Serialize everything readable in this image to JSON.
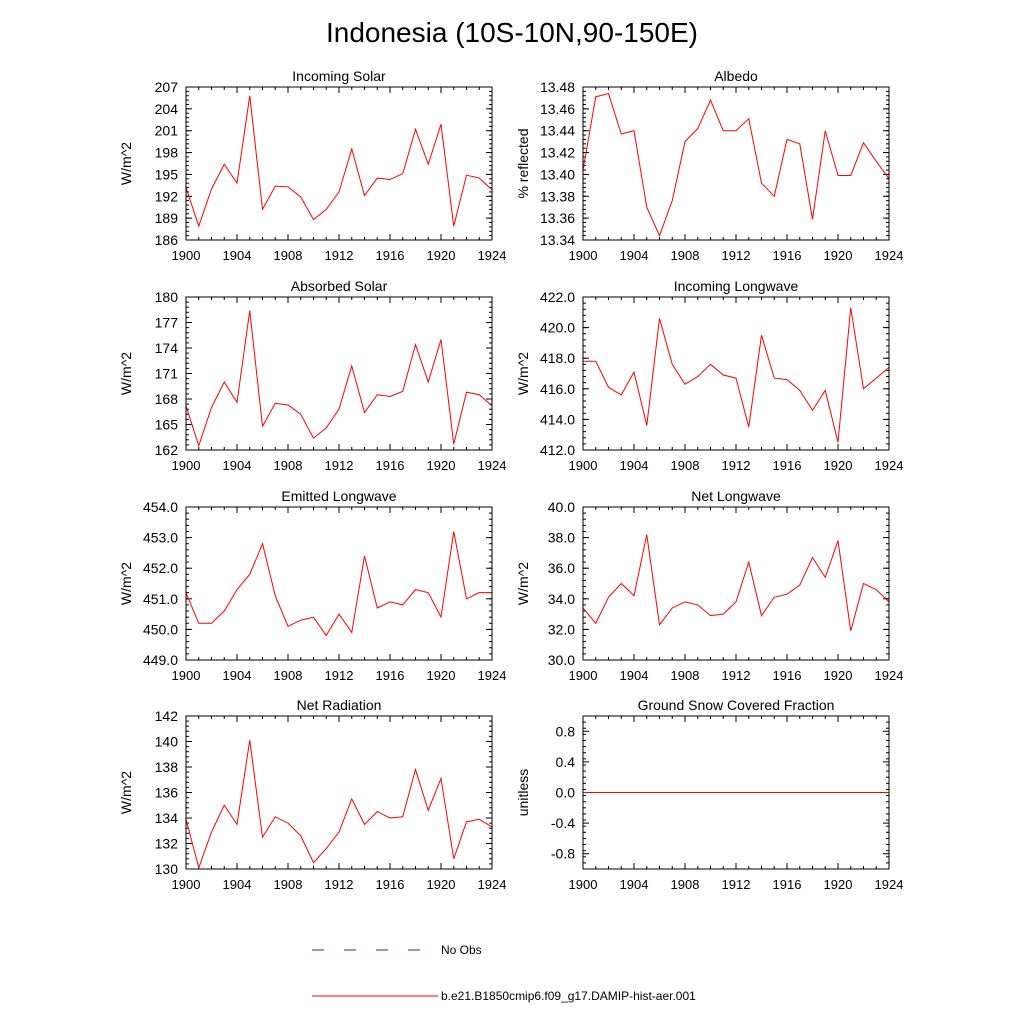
{
  "title": "Indonesia (10S-10N,90-150E)",
  "colors": {
    "model": "#ff0000",
    "obs": "#2b2bbf",
    "axis": "#000000"
  },
  "legend": [
    {
      "label": "No Obs",
      "style": "dashed",
      "color": "#2b2bbf"
    },
    {
      "label": "b.e21.B1850cmip6.f09_g17.DAMIP-hist-aer.001",
      "style": "solid",
      "color": "#ff0000"
    }
  ],
  "chart_data": [
    {
      "type": "line",
      "title": "Incoming Solar",
      "ylabel": "W/m^2",
      "xlim": [
        1900,
        1924
      ],
      "ylim": [
        186,
        207
      ],
      "xticks": [
        "1900",
        "1904",
        "1908",
        "1912",
        "1916",
        "1920",
        "1924"
      ],
      "yticks": [
        "186",
        "189",
        "192",
        "195",
        "198",
        "201",
        "204",
        "207"
      ],
      "x": [
        1900,
        1901,
        1902,
        1903,
        1904,
        1905,
        1906,
        1907,
        1908,
        1909,
        1910,
        1911,
        1912,
        1913,
        1914,
        1915,
        1916,
        1917,
        1918,
        1919,
        1920,
        1921,
        1922,
        1923,
        1924
      ],
      "series": [
        {
          "values": [
            193.2,
            187.9,
            193.0,
            196.4,
            193.8,
            205.8,
            190.2,
            193.4,
            193.3,
            191.9,
            188.8,
            190.2,
            192.6,
            198.5,
            192.1,
            194.5,
            194.3,
            195.1,
            201.2,
            196.4,
            201.9,
            187.9,
            194.9,
            194.5,
            192.9
          ]
        }
      ]
    },
    {
      "type": "line",
      "title": "Albedo",
      "ylabel": "% reflected",
      "xlim": [
        1900,
        1924
      ],
      "ylim": [
        13.34,
        13.48
      ],
      "xticks": [
        "1900",
        "1904",
        "1908",
        "1912",
        "1916",
        "1920",
        "1924"
      ],
      "yticks": [
        "13.34",
        "13.36",
        "13.38",
        "13.40",
        "13.42",
        "13.44",
        "13.46",
        "13.48"
      ],
      "x": [
        1900,
        1901,
        1902,
        1903,
        1904,
        1905,
        1906,
        1907,
        1908,
        1909,
        1910,
        1911,
        1912,
        1913,
        1914,
        1915,
        1916,
        1917,
        1918,
        1919,
        1920,
        1921,
        1922,
        1923,
        1924
      ],
      "series": [
        {
          "values": [
            13.404,
            13.471,
            13.474,
            13.437,
            13.44,
            13.37,
            13.344,
            13.376,
            13.43,
            13.442,
            13.468,
            13.44,
            13.44,
            13.451,
            13.392,
            13.38,
            13.432,
            13.428,
            13.359,
            13.44,
            13.399,
            13.399,
            13.429,
            13.412,
            13.396
          ]
        }
      ]
    },
    {
      "type": "line",
      "title": "Absorbed Solar",
      "ylabel": "W/m^2",
      "xlim": [
        1900,
        1924
      ],
      "ylim": [
        162,
        180
      ],
      "xticks": [
        "1900",
        "1904",
        "1908",
        "1912",
        "1916",
        "1920",
        "1924"
      ],
      "yticks": [
        "162",
        "165",
        "168",
        "171",
        "174",
        "177",
        "180"
      ],
      "x": [
        1900,
        1901,
        1902,
        1903,
        1904,
        1905,
        1906,
        1907,
        1908,
        1909,
        1910,
        1911,
        1912,
        1913,
        1914,
        1915,
        1916,
        1917,
        1918,
        1919,
        1920,
        1921,
        1922,
        1923,
        1924
      ],
      "series": [
        {
          "values": [
            167.2,
            162.5,
            167.0,
            170.0,
            167.6,
            178.4,
            164.8,
            167.5,
            167.3,
            166.2,
            163.4,
            164.6,
            166.8,
            171.9,
            166.4,
            168.5,
            168.3,
            168.9,
            174.4,
            170.0,
            175.0,
            162.7,
            168.8,
            168.5,
            167.2
          ]
        }
      ]
    },
    {
      "type": "line",
      "title": "Incoming Longwave",
      "ylabel": "W/m^2",
      "xlim": [
        1900,
        1924
      ],
      "ylim": [
        412.0,
        422.0
      ],
      "xticks": [
        "1900",
        "1904",
        "1908",
        "1912",
        "1916",
        "1920",
        "1924"
      ],
      "yticks": [
        "412.0",
        "414.0",
        "416.0",
        "418.0",
        "420.0",
        "422.0"
      ],
      "x": [
        1900,
        1901,
        1902,
        1903,
        1904,
        1905,
        1906,
        1907,
        1908,
        1909,
        1910,
        1911,
        1912,
        1913,
        1914,
        1915,
        1916,
        1917,
        1918,
        1919,
        1920,
        1921,
        1922,
        1923,
        1924
      ],
      "series": [
        {
          "values": [
            417.8,
            417.8,
            416.1,
            415.6,
            417.1,
            413.6,
            420.6,
            417.6,
            416.3,
            416.8,
            417.6,
            416.9,
            416.7,
            413.5,
            419.5,
            416.7,
            416.6,
            415.9,
            414.6,
            415.9,
            412.5,
            421.3,
            416.0,
            416.7,
            417.4
          ]
        }
      ]
    },
    {
      "type": "line",
      "title": "Emitted Longwave",
      "ylabel": "W/m^2",
      "xlim": [
        1900,
        1924
      ],
      "ylim": [
        449.0,
        454.0
      ],
      "xticks": [
        "1900",
        "1904",
        "1908",
        "1912",
        "1916",
        "1920",
        "1924"
      ],
      "yticks": [
        "449.0",
        "450.0",
        "451.0",
        "452.0",
        "453.0",
        "454.0"
      ],
      "x": [
        1900,
        1901,
        1902,
        1903,
        1904,
        1905,
        1906,
        1907,
        1908,
        1909,
        1910,
        1911,
        1912,
        1913,
        1914,
        1915,
        1916,
        1917,
        1918,
        1919,
        1920,
        1921,
        1922,
        1923,
        1924
      ],
      "series": [
        {
          "values": [
            451.2,
            450.2,
            450.2,
            450.6,
            451.3,
            451.8,
            452.8,
            451.1,
            450.1,
            450.3,
            450.4,
            449.8,
            450.5,
            449.9,
            452.4,
            450.7,
            450.9,
            450.8,
            451.3,
            451.2,
            450.4,
            453.2,
            451.0,
            451.2,
            451.2
          ]
        }
      ]
    },
    {
      "type": "line",
      "title": "Net Longwave",
      "ylabel": "W/m^2",
      "xlim": [
        1900,
        1924
      ],
      "ylim": [
        30.0,
        40.0
      ],
      "xticks": [
        "1900",
        "1904",
        "1908",
        "1912",
        "1916",
        "1920",
        "1924"
      ],
      "yticks": [
        "30.0",
        "32.0",
        "34.0",
        "36.0",
        "38.0",
        "40.0"
      ],
      "x": [
        1900,
        1901,
        1902,
        1903,
        1904,
        1905,
        1906,
        1907,
        1908,
        1909,
        1910,
        1911,
        1912,
        1913,
        1914,
        1915,
        1916,
        1917,
        1918,
        1919,
        1920,
        1921,
        1922,
        1923,
        1924
      ],
      "series": [
        {
          "values": [
            33.4,
            32.4,
            34.1,
            35.0,
            34.2,
            38.2,
            32.3,
            33.4,
            33.8,
            33.6,
            32.9,
            33.0,
            33.8,
            36.4,
            32.9,
            34.1,
            34.3,
            34.9,
            36.7,
            35.4,
            37.8,
            31.9,
            35.0,
            34.6,
            33.8
          ]
        }
      ]
    },
    {
      "type": "line",
      "title": "Net Radiation",
      "ylabel": "W/m^2",
      "xlim": [
        1900,
        1924
      ],
      "ylim": [
        130,
        142
      ],
      "xticks": [
        "1900",
        "1904",
        "1908",
        "1912",
        "1916",
        "1920",
        "1924"
      ],
      "yticks": [
        "130",
        "132",
        "134",
        "136",
        "138",
        "140",
        "142"
      ],
      "x": [
        1900,
        1901,
        1902,
        1903,
        1904,
        1905,
        1906,
        1907,
        1908,
        1909,
        1910,
        1911,
        1912,
        1913,
        1914,
        1915,
        1916,
        1917,
        1918,
        1919,
        1920,
        1921,
        1922,
        1923,
        1924
      ],
      "series": [
        {
          "values": [
            133.9,
            130.1,
            132.9,
            135.0,
            133.5,
            140.1,
            132.5,
            134.1,
            133.6,
            132.6,
            130.5,
            131.6,
            132.9,
            135.5,
            133.5,
            134.5,
            134.0,
            134.1,
            137.8,
            134.6,
            137.1,
            130.8,
            133.7,
            133.9,
            133.3
          ]
        }
      ]
    },
    {
      "type": "line",
      "title": "Ground Snow Covered Fraction",
      "ylabel": "unitless",
      "xlim": [
        1900,
        1924
      ],
      "ylim": [
        -1.0,
        1.0
      ],
      "xticks": [
        "1900",
        "1904",
        "1908",
        "1912",
        "1916",
        "1920",
        "1924"
      ],
      "yticks": [
        "-0.8",
        "-0.4",
        "0.0",
        "0.4",
        "0.8"
      ],
      "x": [
        1900,
        1901,
        1902,
        1903,
        1904,
        1905,
        1906,
        1907,
        1908,
        1909,
        1910,
        1911,
        1912,
        1913,
        1914,
        1915,
        1916,
        1917,
        1918,
        1919,
        1920,
        1921,
        1922,
        1923,
        1924
      ],
      "series": [
        {
          "values": [
            0,
            0,
            0,
            0,
            0,
            0,
            0,
            0,
            0,
            0,
            0,
            0,
            0,
            0,
            0,
            0,
            0,
            0,
            0,
            0,
            0,
            0,
            0,
            0,
            0
          ]
        }
      ]
    }
  ]
}
